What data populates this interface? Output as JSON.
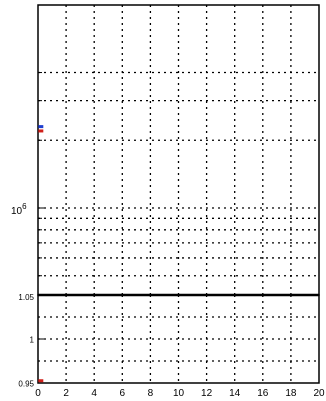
{
  "chart_data": [
    {
      "type": "scatter",
      "panel": "top",
      "y_scale": "log",
      "x_range": [
        0,
        20
      ],
      "y_tick_labels": [
        "10^6"
      ],
      "grid": true,
      "series": [
        {
          "color": "#1f3fcf",
          "points": [
            {
              "x": 0.2,
              "y": 2300000
            }
          ]
        },
        {
          "color": "#d0201a",
          "points": [
            {
              "x": 0.2,
              "y": 2200000
            }
          ]
        }
      ],
      "x_ticks": []
    },
    {
      "type": "scatter",
      "panel": "bottom",
      "y_scale": "linear",
      "x_range": [
        0,
        20
      ],
      "y_range": [
        0.95,
        1.05
      ],
      "y_ticks": [
        {
          "value": 1.05,
          "label": "1.05"
        },
        {
          "value": 1.0,
          "label": "1"
        },
        {
          "value": 0.95,
          "label": "0.95"
        }
      ],
      "grid": true,
      "series": [
        {
          "color": "#d0201a",
          "points": [
            {
              "x": 0.2,
              "y": 0.952
            }
          ]
        }
      ],
      "x_ticks": [
        {
          "value": 0,
          "label": "0"
        },
        {
          "value": 2,
          "label": "2"
        },
        {
          "value": 4,
          "label": "4"
        },
        {
          "value": 6,
          "label": "6"
        },
        {
          "value": 8,
          "label": "8"
        },
        {
          "value": 10,
          "label": "10"
        },
        {
          "value": 12,
          "label": "12"
        },
        {
          "value": 14,
          "label": "14"
        },
        {
          "value": 16,
          "label": "16"
        },
        {
          "value": 18,
          "label": "18"
        },
        {
          "value": 20,
          "label": "20"
        }
      ]
    }
  ]
}
